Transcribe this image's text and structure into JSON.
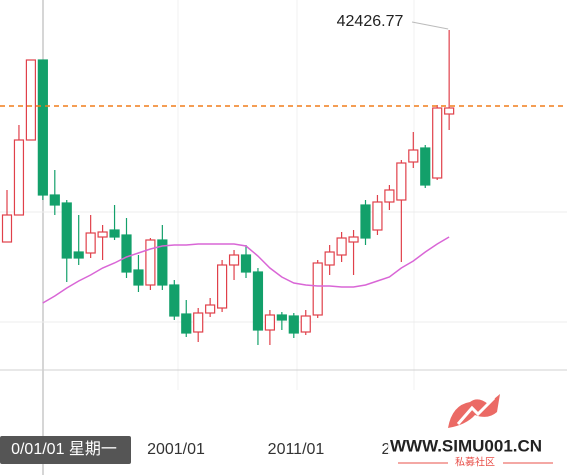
{
  "chart_data": {
    "type": "candlestick",
    "ylim": [
      6426.77,
      45426.77
    ],
    "up_color": "#e0404a",
    "down_color": "#13a06a",
    "open": [
      21227,
      23927,
      31427,
      39427,
      25927,
      25127,
      20227,
      20127,
      21727,
      22427,
      21927,
      18427,
      16927,
      21427,
      16927,
      14027,
      12227,
      14127,
      14627,
      18927,
      19927,
      18227,
      12427,
      13927,
      13827,
      12227,
      13927,
      18927,
      19927,
      21227,
      24927,
      22427,
      25227,
      25427,
      29227,
      30627,
      27627,
      34027
    ],
    "high": [
      26427,
      32927,
      39427,
      39427,
      28427,
      25427,
      23927,
      23927,
      22927,
      24927,
      23627,
      19927,
      21627,
      22927,
      17427,
      15427,
      14627,
      15627,
      19427,
      20427,
      20927,
      18627,
      14427,
      14227,
      14127,
      14427,
      19427,
      20927,
      22227,
      22427,
      25427,
      25927,
      26927,
      29427,
      32227,
      30927,
      34927,
      42426.77
    ],
    "low": [
      21227,
      23927,
      31427,
      25427,
      23927,
      17227,
      18927,
      19627,
      19427,
      21427,
      17627,
      16227,
      16427,
      16427,
      13427,
      11727,
      11227,
      13727,
      14227,
      17427,
      17627,
      10927,
      10927,
      12427,
      11627,
      11927,
      13627,
      17927,
      19227,
      17927,
      20927,
      21927,
      24427,
      19227,
      28627,
      26627,
      27427,
      32427
    ],
    "close": [
      23927,
      31427,
      39427,
      25927,
      24927,
      19627,
      19627,
      22127,
      22227,
      21727,
      18227,
      16927,
      21427,
      16927,
      13827,
      12127,
      14127,
      14927,
      18927,
      19927,
      18227,
      12427,
      13927,
      13427,
      12127,
      13827,
      19127,
      20227,
      21627,
      21727,
      21627,
      25227,
      26427,
      29127,
      30427,
      26927,
      34627,
      34627
    ],
    "ma": {
      "color": "#d966d6",
      "values": [
        null,
        null,
        null,
        15127,
        15827,
        16627,
        17327,
        17927,
        18627,
        19127,
        19727,
        20127,
        20527,
        20827,
        20927,
        20927,
        21027,
        21027,
        21027,
        21027,
        20827,
        19827,
        18627,
        17727,
        17127,
        16927,
        16827,
        16827,
        16727,
        16727,
        16927,
        17327,
        17727,
        18627,
        19327,
        20227,
        21027,
        21727
      ]
    },
    "price_line": {
      "value": 34827,
      "color": "#f07d1a"
    },
    "grid_y": [
      24227,
      13227
    ],
    "x_labels": [
      "0/01/01 星期一",
      "2001/01",
      "2011/01",
      "2"
    ]
  },
  "watermark": {
    "text": "WWW.SIMU001.CN",
    "sub": "私募社区"
  }
}
